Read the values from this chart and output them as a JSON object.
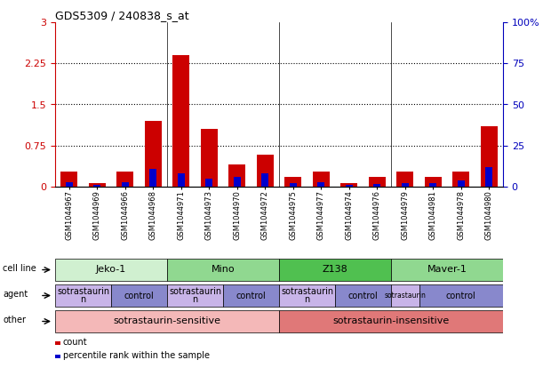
{
  "title": "GDS5309 / 240838_s_at",
  "samples": [
    "GSM1044967",
    "GSM1044969",
    "GSM1044966",
    "GSM1044968",
    "GSM1044971",
    "GSM1044973",
    "GSM1044970",
    "GSM1044972",
    "GSM1044975",
    "GSM1044977",
    "GSM1044974",
    "GSM1044976",
    "GSM1044979",
    "GSM1044981",
    "GSM1044978",
    "GSM1044980"
  ],
  "red_values": [
    0.28,
    0.07,
    0.27,
    1.2,
    2.4,
    1.05,
    0.4,
    0.58,
    0.18,
    0.28,
    0.06,
    0.18,
    0.28,
    0.18,
    0.27,
    1.1
  ],
  "blue_values": [
    0.08,
    0.04,
    0.08,
    0.32,
    0.25,
    0.14,
    0.18,
    0.25,
    0.06,
    0.08,
    0.025,
    0.05,
    0.07,
    0.07,
    0.12,
    0.35
  ],
  "ylim_left": [
    0,
    3
  ],
  "ylim_right": [
    0,
    100
  ],
  "yticks_left": [
    0,
    0.75,
    1.5,
    2.25,
    3
  ],
  "yticks_right": [
    0,
    25,
    50,
    75,
    100
  ],
  "ytick_labels_left": [
    "0",
    "0.75",
    "1.5",
    "2.25",
    "3"
  ],
  "ytick_labels_right": [
    "0",
    "25",
    "50",
    "75",
    "100%"
  ],
  "cell_line_groups": [
    {
      "label": "Jeko-1",
      "start": 0,
      "end": 4,
      "color": "#d0f0d0"
    },
    {
      "label": "Mino",
      "start": 4,
      "end": 8,
      "color": "#90d890"
    },
    {
      "label": "Z138",
      "start": 8,
      "end": 12,
      "color": "#50c050"
    },
    {
      "label": "Maver-1",
      "start": 12,
      "end": 16,
      "color": "#90d890"
    }
  ],
  "agent_groups": [
    {
      "label": "sotrastaurin\nn",
      "start": 0,
      "end": 2,
      "color": "#c8b4e8"
    },
    {
      "label": "control",
      "start": 2,
      "end": 4,
      "color": "#8888cc"
    },
    {
      "label": "sotrastaurin\nn",
      "start": 4,
      "end": 6,
      "color": "#c8b4e8"
    },
    {
      "label": "control",
      "start": 6,
      "end": 8,
      "color": "#8888cc"
    },
    {
      "label": "sotrastaurin\nn",
      "start": 8,
      "end": 10,
      "color": "#c8b4e8"
    },
    {
      "label": "control",
      "start": 10,
      "end": 12,
      "color": "#8888cc"
    },
    {
      "label": "sotrastaurin",
      "start": 12,
      "end": 13,
      "color": "#c8b4e8"
    },
    {
      "label": "control",
      "start": 13,
      "end": 16,
      "color": "#8888cc"
    }
  ],
  "other_groups": [
    {
      "label": "sotrastaurin-sensitive",
      "start": 0,
      "end": 8,
      "color": "#f4b8b8"
    },
    {
      "label": "sotrastaurin-insensitive",
      "start": 8,
      "end": 16,
      "color": "#e07878"
    }
  ],
  "row_labels": [
    "cell line",
    "agent",
    "other"
  ],
  "legend_items": [
    {
      "color": "#cc0000",
      "label": "count"
    },
    {
      "color": "#0000cc",
      "label": "percentile rank within the sample"
    }
  ],
  "bar_color_red": "#cc0000",
  "bar_color_blue": "#0000cc",
  "axis_left_color": "#cc0000",
  "axis_right_color": "#0000bb",
  "bg_color": "#ffffff",
  "bar_width": 0.6,
  "blue_bar_width": 0.25
}
